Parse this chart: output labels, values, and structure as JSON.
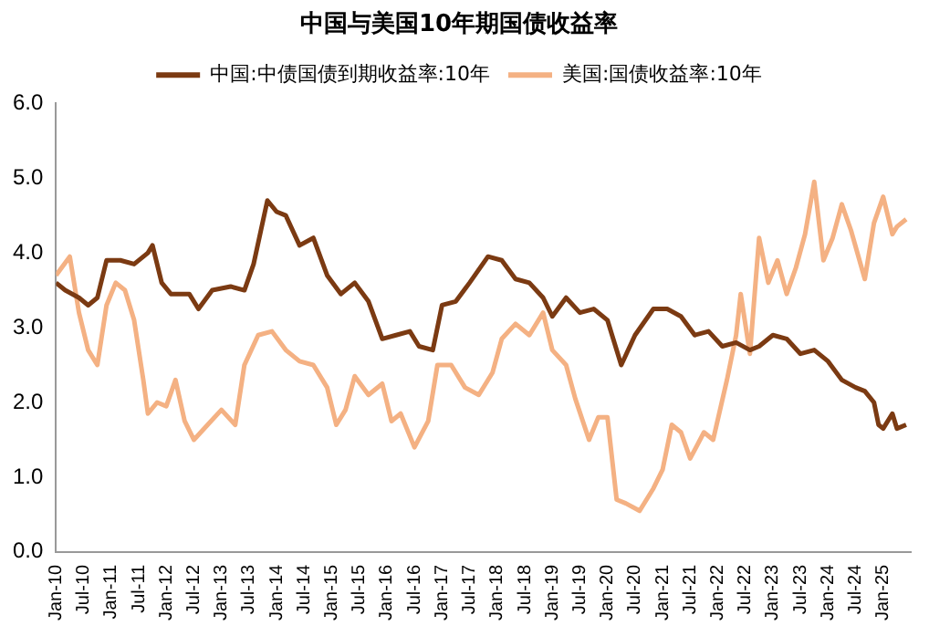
{
  "chart_data": {
    "type": "line",
    "title": "中国与美国10年期国债收益率",
    "legend": "top",
    "xlim": [
      "2010-01",
      "2025-07"
    ],
    "xticks": [
      {
        "value": "2010-01",
        "label": "Jan-10"
      },
      {
        "value": "2010-07",
        "label": "Jul-10"
      },
      {
        "value": "2011-01",
        "label": "Jan-11"
      },
      {
        "value": "2011-07",
        "label": "Jul-11"
      },
      {
        "value": "2012-01",
        "label": "Jan-12"
      },
      {
        "value": "2012-07",
        "label": "Jul-12"
      },
      {
        "value": "2013-01",
        "label": "Jan-13"
      },
      {
        "value": "2013-07",
        "label": "Jul-13"
      },
      {
        "value": "2014-01",
        "label": "Jan-14"
      },
      {
        "value": "2014-07",
        "label": "Jul-14"
      },
      {
        "value": "2015-01",
        "label": "Jan-15"
      },
      {
        "value": "2015-07",
        "label": "Jul-15"
      },
      {
        "value": "2016-01",
        "label": "Jan-16"
      },
      {
        "value": "2016-07",
        "label": "Jul-16"
      },
      {
        "value": "2017-01",
        "label": "Jan-17"
      },
      {
        "value": "2017-07",
        "label": "Jul-17"
      },
      {
        "value": "2018-01",
        "label": "Jan-18"
      },
      {
        "value": "2018-07",
        "label": "Jul-18"
      },
      {
        "value": "2019-01",
        "label": "Jan-19"
      },
      {
        "value": "2019-07",
        "label": "Jul-19"
      },
      {
        "value": "2020-01",
        "label": "Jan-20"
      },
      {
        "value": "2020-07",
        "label": "Jul-20"
      },
      {
        "value": "2021-01",
        "label": "Jan-21"
      },
      {
        "value": "2021-07",
        "label": "Jul-21"
      },
      {
        "value": "2022-01",
        "label": "Jan-22"
      },
      {
        "value": "2022-07",
        "label": "Jul-22"
      },
      {
        "value": "2023-01",
        "label": "Jan-23"
      },
      {
        "value": "2023-07",
        "label": "Jul-23"
      },
      {
        "value": "2024-01",
        "label": "Jan-24"
      },
      {
        "value": "2024-07",
        "label": "Jul-24"
      },
      {
        "value": "2025-01",
        "label": "Jan-25"
      }
    ],
    "ylim": [
      0,
      6
    ],
    "yticks": [
      {
        "value": 0,
        "label": "0.0"
      },
      {
        "value": 1,
        "label": "1.0"
      },
      {
        "value": 2,
        "label": "2.0"
      },
      {
        "value": 3,
        "label": "3.0"
      },
      {
        "value": 4,
        "label": "4.0"
      },
      {
        "value": 5,
        "label": "5.0"
      },
      {
        "value": 6,
        "label": "6.0"
      }
    ],
    "series": [
      {
        "name": "中国:中债国债到期收益率:10年",
        "color": "#7b3a12",
        "x": [
          "2010-01",
          "2010-03",
          "2010-06",
          "2010-08",
          "2010-10",
          "2010-12",
          "2011-03",
          "2011-06",
          "2011-09",
          "2011-10",
          "2011-12",
          "2012-02",
          "2012-06",
          "2012-08",
          "2012-11",
          "2013-03",
          "2013-06",
          "2013-08",
          "2013-11",
          "2014-01",
          "2014-03",
          "2014-06",
          "2014-09",
          "2014-12",
          "2015-03",
          "2015-06",
          "2015-09",
          "2015-12",
          "2016-03",
          "2016-06",
          "2016-08",
          "2016-11",
          "2017-01",
          "2017-04",
          "2017-07",
          "2017-11",
          "2018-02",
          "2018-05",
          "2018-08",
          "2018-11",
          "2019-01",
          "2019-04",
          "2019-07",
          "2019-10",
          "2020-01",
          "2020-02",
          "2020-04",
          "2020-07",
          "2020-11",
          "2021-02",
          "2021-05",
          "2021-08",
          "2021-11",
          "2022-02",
          "2022-05",
          "2022-08",
          "2022-10",
          "2023-01",
          "2023-04",
          "2023-07",
          "2023-10",
          "2024-01",
          "2024-04",
          "2024-07",
          "2024-09",
          "2024-11",
          "2024-12",
          "2025-01",
          "2025-03",
          "2025-04",
          "2025-06"
        ],
        "values": [
          3.6,
          3.5,
          3.4,
          3.3,
          3.4,
          3.9,
          3.9,
          3.85,
          4.0,
          4.1,
          3.6,
          3.45,
          3.45,
          3.25,
          3.5,
          3.55,
          3.5,
          3.85,
          4.7,
          4.55,
          4.5,
          4.1,
          4.2,
          3.7,
          3.45,
          3.6,
          3.35,
          2.85,
          2.9,
          2.95,
          2.75,
          2.7,
          3.3,
          3.35,
          3.6,
          3.95,
          3.9,
          3.65,
          3.6,
          3.4,
          3.15,
          3.4,
          3.2,
          3.25,
          3.1,
          2.9,
          2.5,
          2.9,
          3.25,
          3.25,
          3.15,
          2.9,
          2.95,
          2.75,
          2.8,
          2.7,
          2.75,
          2.9,
          2.85,
          2.65,
          2.7,
          2.55,
          2.3,
          2.2,
          2.15,
          2.0,
          1.7,
          1.65,
          1.85,
          1.65,
          1.7
        ]
      },
      {
        "name": "美国:国债收益率:10年",
        "color": "#f4b183",
        "x": [
          "2010-01",
          "2010-04",
          "2010-06",
          "2010-08",
          "2010-10",
          "2010-12",
          "2011-02",
          "2011-04",
          "2011-06",
          "2011-08",
          "2011-09",
          "2011-11",
          "2012-01",
          "2012-03",
          "2012-05",
          "2012-07",
          "2012-10",
          "2013-01",
          "2013-04",
          "2013-06",
          "2013-09",
          "2013-12",
          "2014-03",
          "2014-06",
          "2014-09",
          "2014-12",
          "2015-02",
          "2015-04",
          "2015-06",
          "2015-09",
          "2015-12",
          "2016-02",
          "2016-04",
          "2016-07",
          "2016-10",
          "2016-12",
          "2017-03",
          "2017-06",
          "2017-09",
          "2017-12",
          "2018-02",
          "2018-05",
          "2018-08",
          "2018-11",
          "2019-01",
          "2019-04",
          "2019-06",
          "2019-09",
          "2019-11",
          "2020-01",
          "2020-03",
          "2020-05",
          "2020-08",
          "2020-11",
          "2021-01",
          "2021-03",
          "2021-05",
          "2021-07",
          "2021-10",
          "2021-12",
          "2022-03",
          "2022-05",
          "2022-06",
          "2022-08",
          "2022-10",
          "2022-12",
          "2023-02",
          "2023-04",
          "2023-06",
          "2023-08",
          "2023-10",
          "2023-12",
          "2024-02",
          "2024-04",
          "2024-06",
          "2024-09",
          "2024-11",
          "2025-01",
          "2025-03",
          "2025-04",
          "2025-06"
        ],
        "values": [
          3.7,
          3.95,
          3.2,
          2.7,
          2.5,
          3.3,
          3.6,
          3.5,
          3.1,
          2.3,
          1.85,
          2.0,
          1.95,
          2.3,
          1.75,
          1.5,
          1.7,
          1.9,
          1.7,
          2.5,
          2.9,
          2.95,
          2.7,
          2.55,
          2.5,
          2.2,
          1.7,
          1.9,
          2.35,
          2.1,
          2.25,
          1.75,
          1.85,
          1.4,
          1.75,
          2.5,
          2.5,
          2.2,
          2.1,
          2.4,
          2.85,
          3.05,
          2.9,
          3.2,
          2.7,
          2.5,
          2.05,
          1.5,
          1.8,
          1.8,
          0.7,
          0.65,
          0.55,
          0.85,
          1.1,
          1.7,
          1.6,
          1.25,
          1.6,
          1.5,
          2.3,
          2.9,
          3.45,
          2.65,
          4.2,
          3.6,
          3.9,
          3.45,
          3.8,
          4.25,
          4.95,
          3.9,
          4.2,
          4.65,
          4.3,
          3.65,
          4.4,
          4.75,
          4.25,
          4.35,
          4.45
        ]
      }
    ]
  }
}
